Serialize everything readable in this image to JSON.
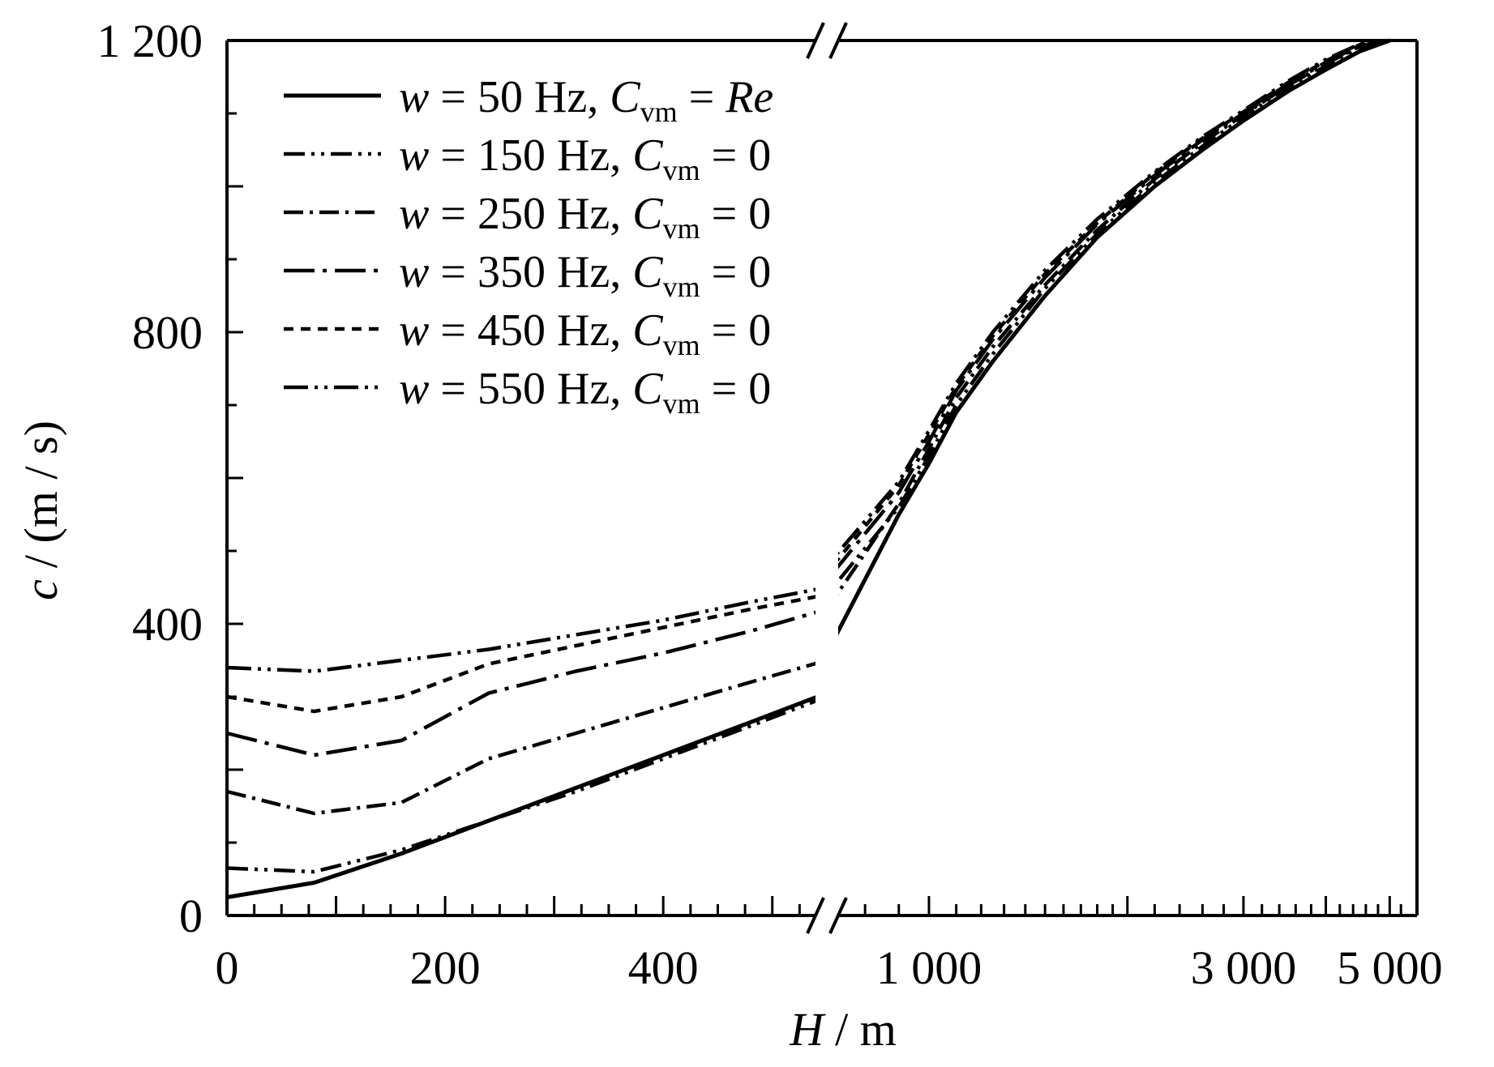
{
  "chart_data": {
    "type": "line",
    "xlabel_var": "H",
    "xlabel_unit": "/ m",
    "ylabel_var": "c",
    "ylabel_unit": "/ (m / s)",
    "axis_break": "x",
    "x_segments": [
      {
        "range": [
          0,
          550
        ],
        "ticks": [
          0,
          200,
          400
        ],
        "tick_labels": [
          "0",
          "200",
          "400"
        ]
      },
      {
        "range": [
          700,
          5500
        ],
        "ticks": [
          1000,
          3000,
          5000
        ],
        "tick_labels": [
          "1 000",
          "3 000",
          "5 000"
        ]
      }
    ],
    "ylim": [
      0,
      1200
    ],
    "yticks": [
      0,
      400,
      800,
      1200
    ],
    "ytick_labels": [
      "0",
      "400",
      "800",
      "1 200"
    ],
    "grid": false,
    "legend_position": "top-left",
    "series": [
      {
        "label_prefix": "w = ",
        "label_freq": "50",
        "label_unit": " Hz, ",
        "label_c": "C",
        "label_sub": "vm",
        "label_eq": " = ",
        "label_val": "Re",
        "val_italic": true,
        "dash": "solid",
        "x": [
          0,
          80,
          160,
          240,
          320,
          400,
          480,
          550,
          700,
          900,
          1000,
          1100,
          1250,
          1500,
          1800,
          2200,
          2600,
          3000,
          3500,
          4000,
          4500,
          5000
        ],
        "y": [
          25,
          45,
          85,
          130,
          175,
          220,
          265,
          305,
          360,
          550,
          620,
          690,
          760,
          850,
          930,
          1000,
          1050,
          1090,
          1130,
          1160,
          1185,
          1200
        ]
      },
      {
        "label_prefix": "w = ",
        "label_freq": "150",
        "label_unit": " Hz, ",
        "label_c": "C",
        "label_sub": "vm",
        "label_eq": " = ",
        "label_val": "0",
        "val_italic": false,
        "dash": "dash-dot-dot",
        "x": [
          0,
          80,
          160,
          240,
          320,
          400,
          480,
          550,
          700,
          900,
          1000,
          1100,
          1250,
          1500,
          1800,
          2200,
          2600,
          3000,
          3500,
          4000,
          4500,
          5000
        ],
        "y": [
          65,
          60,
          90,
          130,
          170,
          215,
          260,
          300,
          440,
          560,
          630,
          700,
          770,
          860,
          935,
          1005,
          1055,
          1095,
          1135,
          1165,
          1190,
          1200
        ]
      },
      {
        "label_prefix": "w = ",
        "label_freq": "250",
        "label_unit": " Hz, ",
        "label_c": "C",
        "label_sub": "vm",
        "label_eq": " = ",
        "label_val": "0",
        "val_italic": false,
        "dash": "dash-dot",
        "x": [
          0,
          80,
          160,
          240,
          320,
          400,
          480,
          550,
          700,
          900,
          1000,
          1100,
          1250,
          1500,
          1800,
          2200,
          2600,
          3000,
          3500,
          4000,
          4500,
          5000
        ],
        "y": [
          170,
          140,
          155,
          215,
          250,
          285,
          320,
          350,
          420,
          565,
          640,
          710,
          780,
          865,
          940,
          1010,
          1060,
          1098,
          1138,
          1168,
          1192,
          1200
        ]
      },
      {
        "label_prefix": "w = ",
        "label_freq": "350",
        "label_unit": " Hz, ",
        "label_c": "C",
        "label_sub": "vm",
        "label_eq": " = ",
        "label_val": "0",
        "val_italic": false,
        "dash": "long-dash-dot",
        "x": [
          0,
          80,
          160,
          240,
          320,
          400,
          480,
          550,
          700,
          900,
          1000,
          1100,
          1250,
          1500,
          1800,
          2200,
          2600,
          3000,
          3500,
          4000,
          4500,
          5000
        ],
        "y": [
          250,
          220,
          240,
          305,
          335,
          360,
          390,
          420,
          460,
          580,
          650,
          720,
          790,
          875,
          948,
          1015,
          1064,
          1100,
          1140,
          1170,
          1193,
          1200
        ]
      },
      {
        "label_prefix": "w = ",
        "label_freq": "450",
        "label_unit": " Hz, ",
        "label_c": "C",
        "label_sub": "vm",
        "label_eq": " = ",
        "label_val": "0",
        "val_italic": false,
        "dash": "short-dash",
        "x": [
          0,
          80,
          160,
          240,
          320,
          400,
          480,
          550,
          700,
          900,
          1000,
          1100,
          1250,
          1500,
          1800,
          2200,
          2600,
          3000,
          3500,
          4000,
          4500,
          5000
        ],
        "y": [
          300,
          280,
          300,
          345,
          370,
          395,
          420,
          440,
          470,
          590,
          660,
          725,
          795,
          880,
          950,
          1018,
          1066,
          1102,
          1142,
          1172,
          1194,
          1200
        ]
      },
      {
        "label_prefix": "w = ",
        "label_freq": "550",
        "label_unit": " Hz, ",
        "label_c": "C",
        "label_sub": "vm",
        "label_eq": " = ",
        "label_val": "0",
        "val_italic": false,
        "dash": "long-dash-dot-dot",
        "x": [
          0,
          80,
          160,
          240,
          320,
          400,
          480,
          550,
          700,
          900,
          1000,
          1100,
          1250,
          1500,
          1800,
          2200,
          2600,
          3000,
          3500,
          4000,
          4500,
          5000
        ],
        "y": [
          340,
          335,
          350,
          365,
          385,
          405,
          430,
          450,
          480,
          595,
          665,
          730,
          800,
          885,
          955,
          1020,
          1068,
          1104,
          1144,
          1174,
          1195,
          1200
        ]
      }
    ]
  }
}
